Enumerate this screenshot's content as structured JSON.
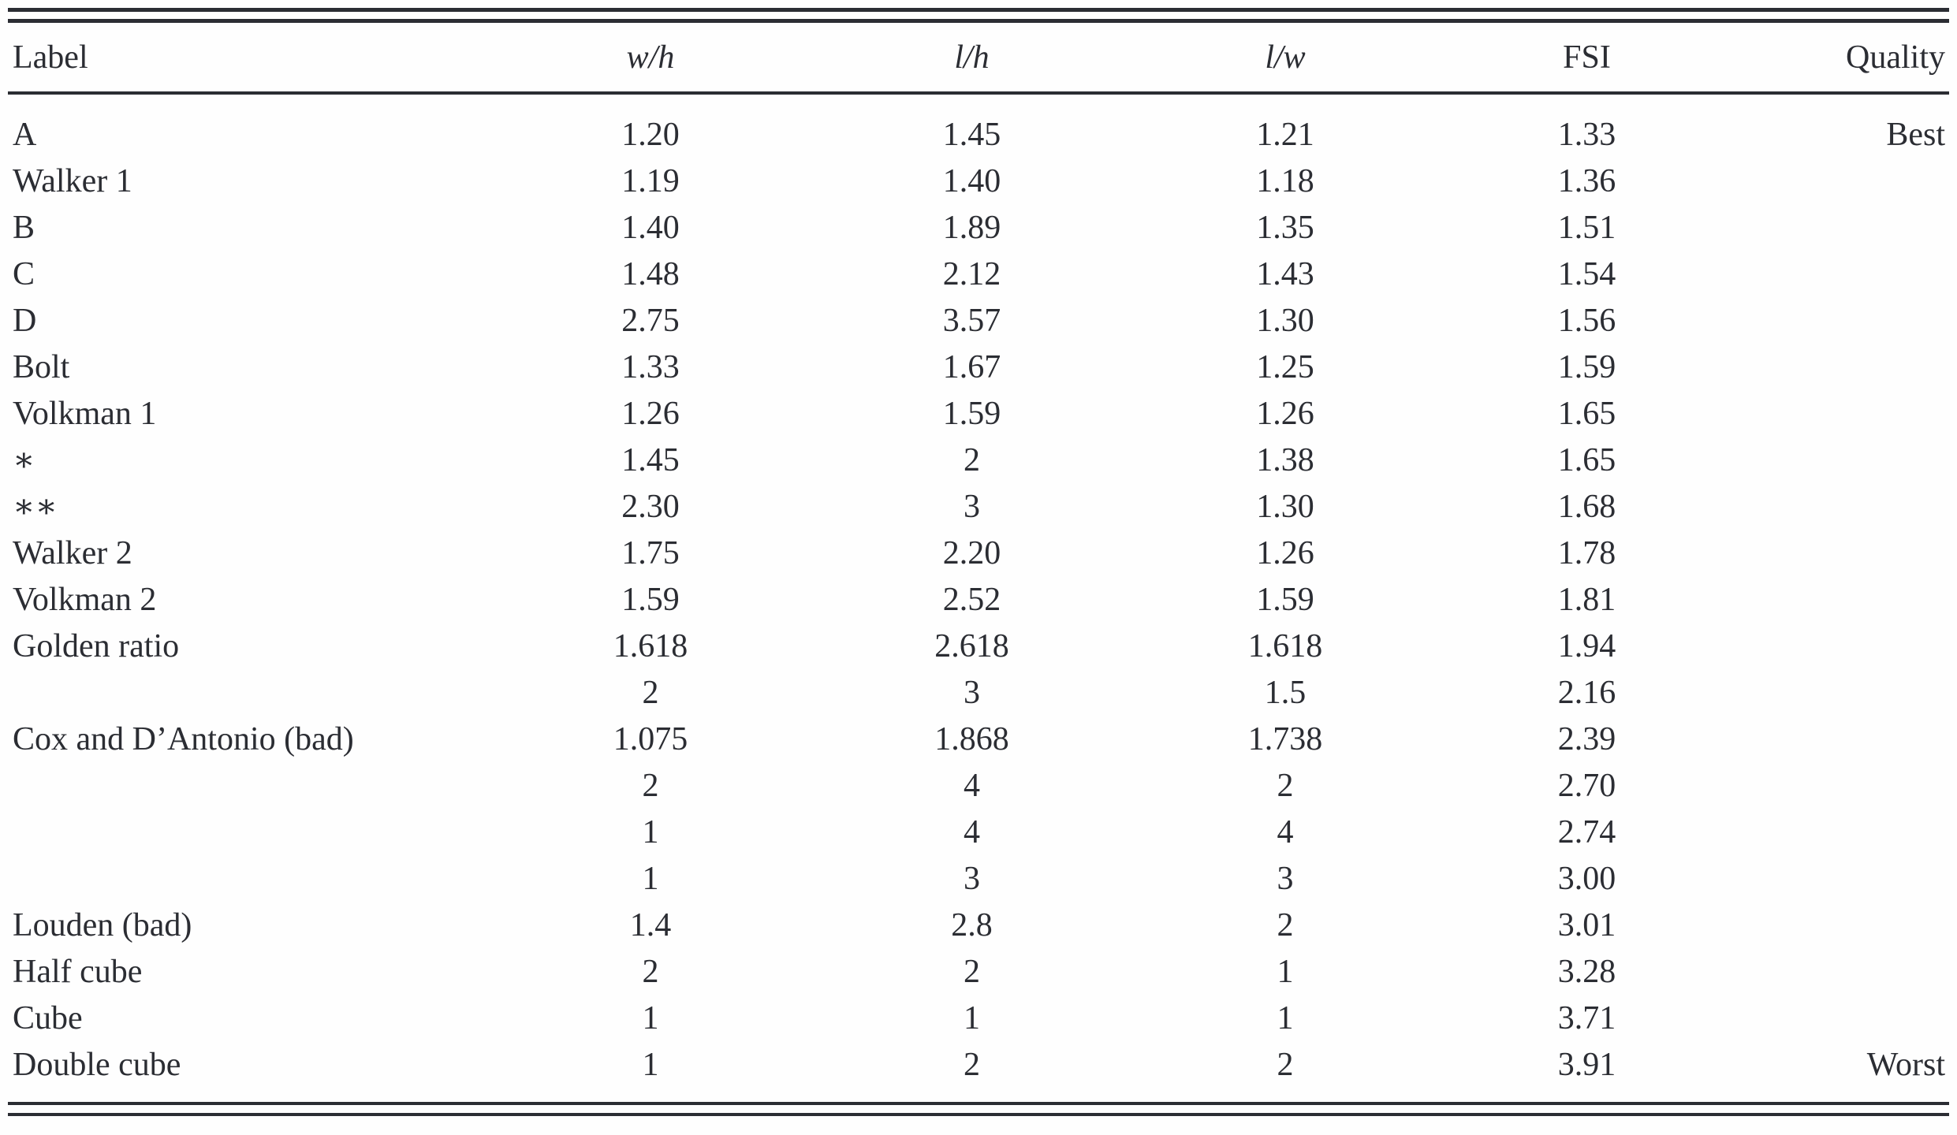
{
  "chart_data": {
    "type": "table",
    "title": "",
    "columns": [
      "Label",
      "w/h",
      "l/h",
      "l/w",
      "FSI",
      "Quality"
    ],
    "italic_columns": [
      "w/h",
      "l/h",
      "l/w"
    ],
    "rows": [
      [
        "A",
        "1.20",
        "1.45",
        "1.21",
        "1.33",
        "Best"
      ],
      [
        "Walker 1",
        "1.19",
        "1.40",
        "1.18",
        "1.36",
        ""
      ],
      [
        "B",
        "1.40",
        "1.89",
        "1.35",
        "1.51",
        ""
      ],
      [
        "C",
        "1.48",
        "2.12",
        "1.43",
        "1.54",
        ""
      ],
      [
        "D",
        "2.75",
        "3.57",
        "1.30",
        "1.56",
        ""
      ],
      [
        "Bolt",
        "1.33",
        "1.67",
        "1.25",
        "1.59",
        ""
      ],
      [
        "Volkman 1",
        "1.26",
        "1.59",
        "1.26",
        "1.65",
        ""
      ],
      [
        "∗",
        "1.45",
        "2",
        "1.38",
        "1.65",
        ""
      ],
      [
        "∗∗",
        "2.30",
        "3",
        "1.30",
        "1.68",
        ""
      ],
      [
        "Walker 2",
        "1.75",
        "2.20",
        "1.26",
        "1.78",
        ""
      ],
      [
        "Volkman 2",
        "1.59",
        "2.52",
        "1.59",
        "1.81",
        ""
      ],
      [
        "Golden ratio",
        "1.618",
        "2.618",
        "1.618",
        "1.94",
        ""
      ],
      [
        "",
        "2",
        "3",
        "1.5",
        "2.16",
        ""
      ],
      [
        "Cox and D’Antonio (bad)",
        "1.075",
        "1.868",
        "1.738",
        "2.39",
        ""
      ],
      [
        "",
        "2",
        "4",
        "2",
        "2.70",
        ""
      ],
      [
        "",
        "1",
        "4",
        "4",
        "2.74",
        ""
      ],
      [
        "",
        "1",
        "3",
        "3",
        "3.00",
        ""
      ],
      [
        "Louden (bad)",
        "1.4",
        "2.8",
        "2",
        "3.01",
        ""
      ],
      [
        "Half cube",
        "2",
        "2",
        "1",
        "3.28",
        ""
      ],
      [
        "Cube",
        "1",
        "1",
        "1",
        "3.71",
        ""
      ],
      [
        "Double cube",
        "1",
        "2",
        "2",
        "3.91",
        "Worst"
      ]
    ],
    "text_color": "#2b2d33",
    "rule_color": "#2b2d33",
    "background_color": "#fefefe",
    "layout_hints": {
      "top_border": "double rule",
      "bottom_border": "double rule",
      "header_separator": "single rule",
      "numeric_alignment": "center",
      "quality_alignment": "right"
    }
  }
}
